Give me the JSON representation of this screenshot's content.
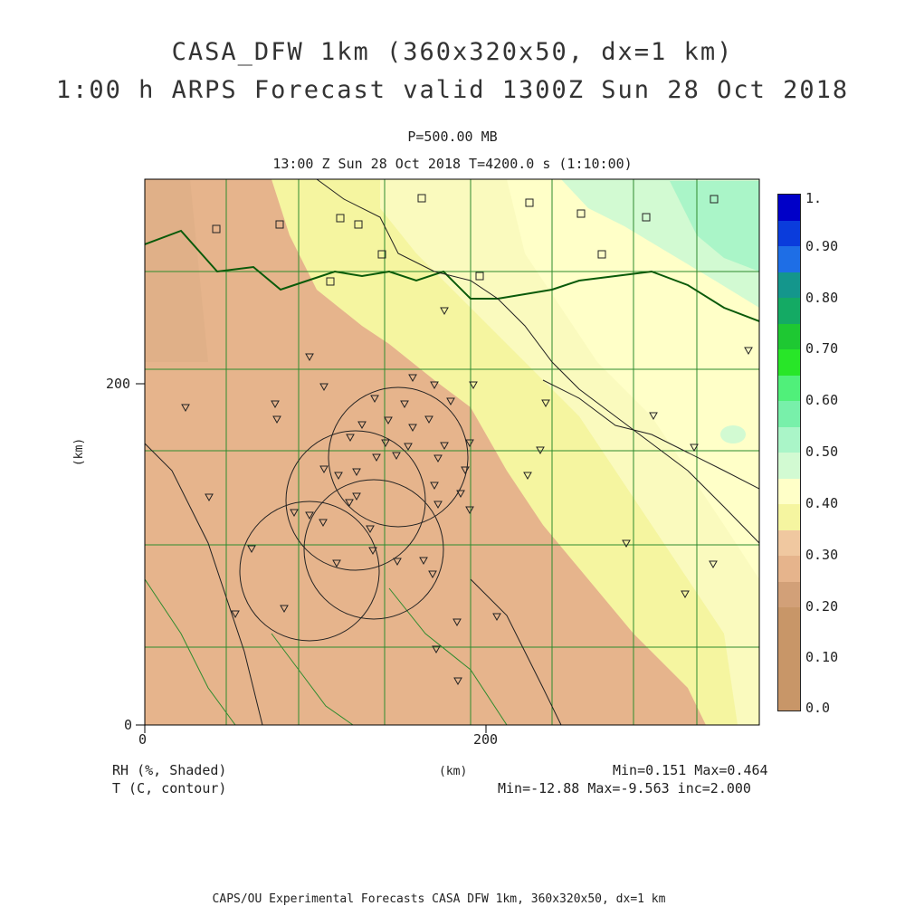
{
  "header": {
    "title_line1": "CASA_DFW 1km (360x320x50, dx=1 km)",
    "title_line2": "1:00 h ARPS Forecast valid 1300Z Sun 28 Oct 2018",
    "pressure": "P=500.00 MB",
    "time_line": "13:00 Z Sun 28 Oct 2018   T=4200.0 s (1:10:00)"
  },
  "axes": {
    "y_unit": "(km)",
    "x_unit": "(km)",
    "y_ticks": [
      "200",
      "0"
    ],
    "x_ticks": [
      "0",
      "200"
    ]
  },
  "colorbar": {
    "labels": [
      "1.",
      "0.90",
      "0.80",
      "0.70",
      "0.60",
      "0.50",
      "0.40",
      "0.30",
      "0.20",
      "0.10",
      "0.0"
    ],
    "colors": [
      "#0000c8",
      "#0a3cdc",
      "#1e6ee6",
      "#14968c",
      "#14aa64",
      "#1ec832",
      "#28e628",
      "#50f07a",
      "#78f0aa",
      "#aaf5c8",
      "#d2fad2",
      "#ffffc8",
      "#f5f5a0",
      "#f0c8a0",
      "#e6b48c",
      "#d2a078"
    ]
  },
  "footer": {
    "field1": "RH (%, Shaded)",
    "field2": "T (C, contour)",
    "minmax1": "Min=0.151 Max=0.464",
    "minmax2": "Min=-12.88 Max=-9.563 inc=2.000",
    "credit": "CAPS/OU Experimental Forecasts  CASA DFW 1km, 360x320x50, dx=1 km"
  },
  "map": {
    "shading": "relative humidity",
    "contour_colors": {
      "state_border": "#0a5a0a",
      "county": "#2e8b2e",
      "rivers": "#222222",
      "radar_rings": "#222222"
    }
  }
}
